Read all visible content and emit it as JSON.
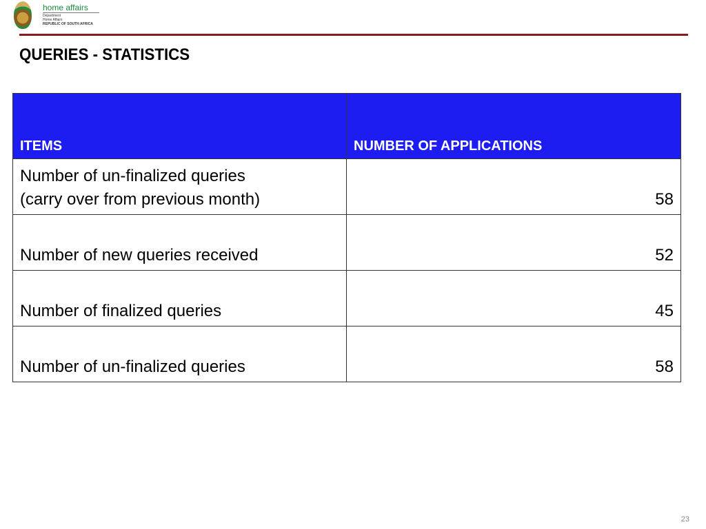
{
  "logo": {
    "brand": "home affairs",
    "line1": "Department",
    "line2": "Home Affairs",
    "line3": "REPUBLIC OF SOUTH AFRICA"
  },
  "title": "QUERIES - STATISTICS",
  "table": {
    "headers": [
      "ITEMS",
      "NUMBER OF APPLICATIONS"
    ],
    "rows": [
      {
        "item_line1": "Number of un-finalized queries",
        "item_line2": "(carry over from previous month)",
        "value": "58"
      },
      {
        "item": "Number of new queries received",
        "value": "52"
      },
      {
        "item": "Number of finalized queries",
        "value": "45"
      },
      {
        "item": "Number of un-finalized queries",
        "value": "58"
      }
    ]
  },
  "colors": {
    "header": "#1d1df2",
    "rule": "#8b1a1a"
  },
  "page_number": "23"
}
